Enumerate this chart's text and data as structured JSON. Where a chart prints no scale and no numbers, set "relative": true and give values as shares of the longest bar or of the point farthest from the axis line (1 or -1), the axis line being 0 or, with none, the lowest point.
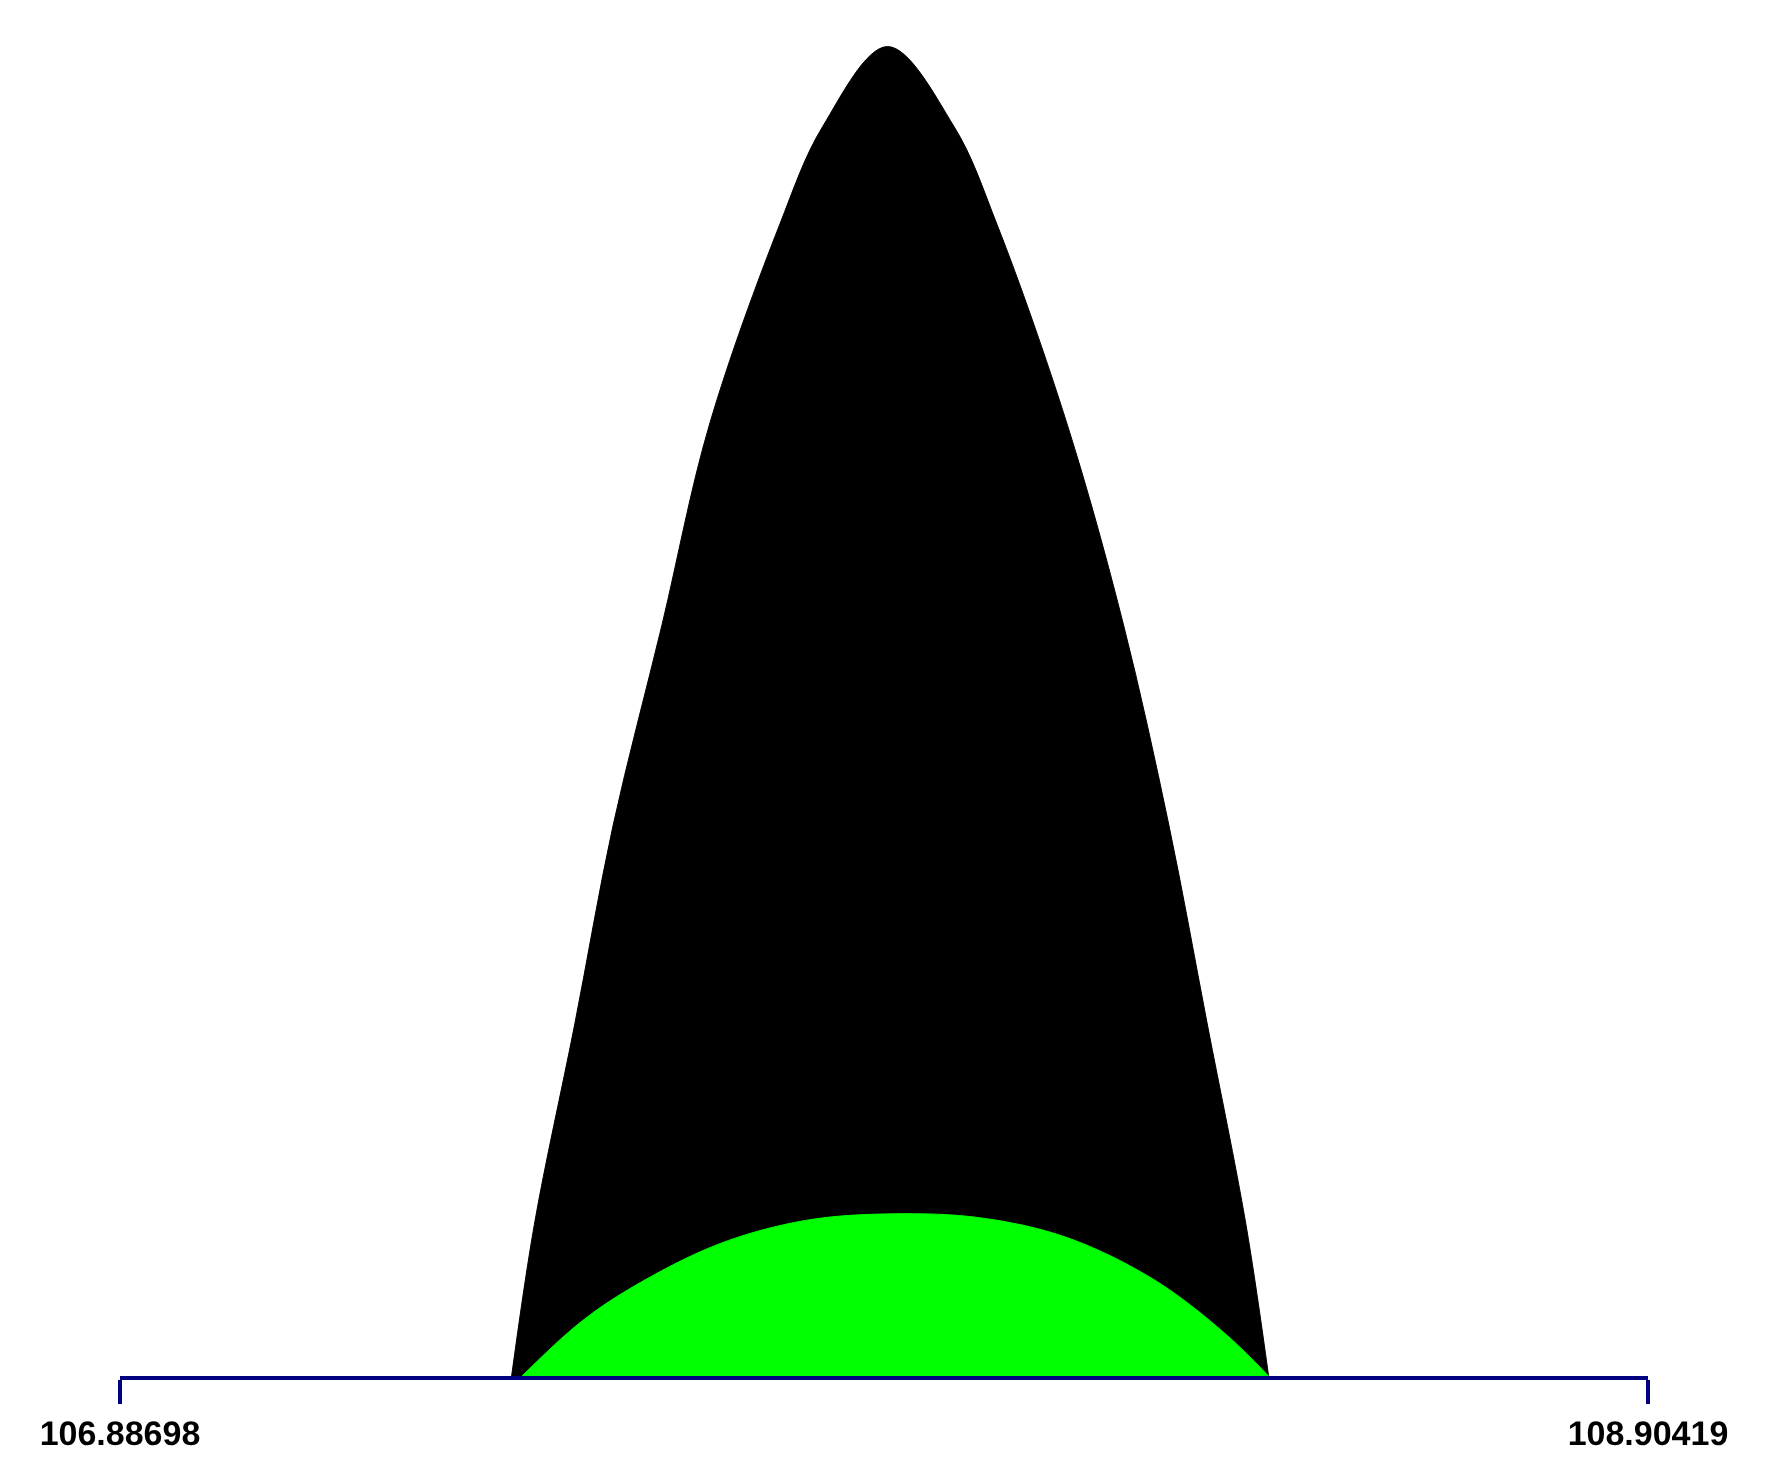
{
  "chart_data": {
    "type": "area",
    "relative": true,
    "xlim": [
      106.88698,
      108.90419
    ],
    "xticks": [
      106.88698,
      108.90419
    ],
    "series": [
      {
        "color": "#000000",
        "x": [
          107.404,
          107.434,
          107.4871,
          107.5379,
          107.6025,
          107.6648,
          107.7571,
          107.8148,
          107.9002,
          107.9879,
          108.0456,
          108.1379,
          108.2118,
          108.2718,
          108.3226,
          108.3734,
          108.4033
        ],
        "values": [
          0,
          0.114,
          0.264,
          0.414,
          0.565,
          0.715,
          0.865,
          0.94,
          1,
          0.94,
          0.865,
          0.715,
          0.565,
          0.414,
          0.264,
          0.114,
          0
        ]
      },
      {
        "color": "#00ff00",
        "x": [
          107.4178,
          107.4917,
          107.5609,
          107.6763,
          107.7917,
          107.9071,
          108.0225,
          108.1379,
          108.2533,
          108.3457,
          108.4033
        ],
        "values": [
          0,
          0.039,
          0.066,
          0.099,
          0.117,
          0.122,
          0.119,
          0.104,
          0.072,
          0.032,
          0
        ]
      }
    ]
  }
}
